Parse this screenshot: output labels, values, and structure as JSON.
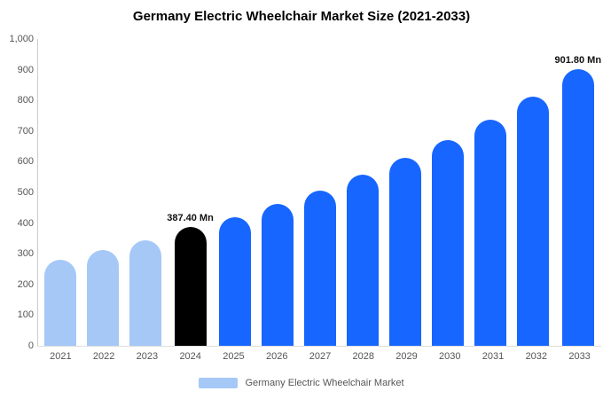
{
  "chart_data": {
    "type": "bar",
    "title": "Germany Electric Wheelchair Market Size (2021-2033)",
    "categories": [
      "2021",
      "2022",
      "2023",
      "2024",
      "2025",
      "2026",
      "2027",
      "2028",
      "2029",
      "2030",
      "2031",
      "2032",
      "2033"
    ],
    "values": [
      280,
      312,
      345,
      387.4,
      420,
      462,
      505,
      557,
      612,
      672,
      738,
      812,
      901.8
    ],
    "bar_colors": [
      "#a5c8f7",
      "#a5c8f7",
      "#a5c8f7",
      "#000000",
      "#1766ff",
      "#1766ff",
      "#1766ff",
      "#1766ff",
      "#1766ff",
      "#1766ff",
      "#1766ff",
      "#1766ff",
      "#1766ff"
    ],
    "annotations": [
      {
        "category": "2024",
        "text": "387.40 Mn"
      },
      {
        "category": "2033",
        "text": "901.80 Mn"
      }
    ],
    "ylim": [
      0,
      1000
    ],
    "ytick_values": [
      0,
      100,
      200,
      300,
      400,
      500,
      600,
      700,
      800,
      900,
      1000
    ],
    "ytick_labels": [
      "0",
      "100",
      "200",
      "300",
      "400",
      "500",
      "600",
      "700",
      "800",
      "900",
      "1,000"
    ],
    "grid": false,
    "legend_position": "bottom"
  },
  "legend": {
    "label": "Germany Electric Wheelchair Market",
    "swatch_color": "#a5c8f7"
  }
}
